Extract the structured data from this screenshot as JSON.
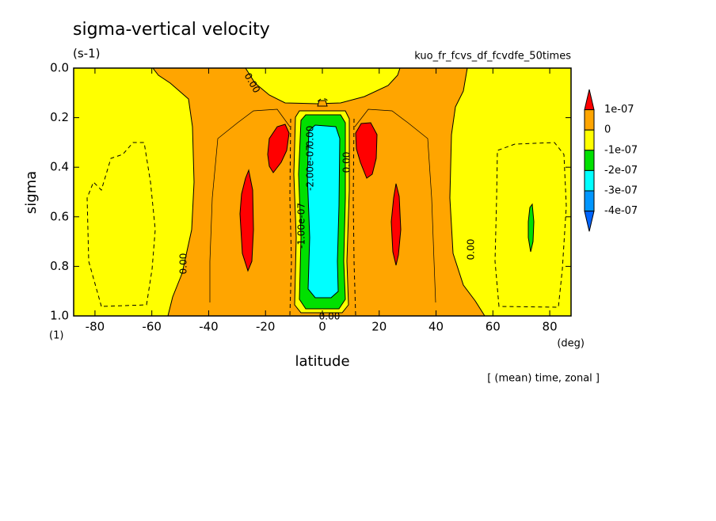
{
  "chart_data": {
    "type": "contour",
    "title": "sigma-vertical velocity",
    "units": "(s-1)",
    "subtitle": "kuo_fr_fcvs_df_fcvdfe_50times",
    "x_label": "latitude",
    "y_label": "sigma",
    "x_unit": "(deg)",
    "y_unit": "(1)",
    "footnote": "[ (mean) time, zonal ]",
    "xlim": [
      -87.5,
      87.5
    ],
    "ylim": [
      1.0,
      0.0
    ],
    "xticks": [
      -80,
      -60,
      -40,
      -20,
      0,
      20,
      40,
      60,
      80
    ],
    "yticks": [
      {
        "value": 0,
        "label": "0.0"
      },
      {
        "value": 0.2,
        "label": "0.2"
      },
      {
        "value": 0.4,
        "label": "0.4"
      },
      {
        "value": 0.6,
        "label": "0.6"
      },
      {
        "value": 0.8,
        "label": "0.8"
      },
      {
        "value": 1,
        "label": "1.0"
      }
    ],
    "colorbar": {
      "levels": [
        {
          "value": 1e-07,
          "label": "1e-07"
        },
        {
          "value": 0,
          "label": "0"
        },
        {
          "value": -1e-07,
          "label": "-1e-07"
        },
        {
          "value": -2e-07,
          "label": "-2e-07"
        },
        {
          "value": -3e-07,
          "label": "-3e-07"
        },
        {
          "value": -4e-07,
          "label": "-4e-07"
        }
      ],
      "colors": [
        "#ff0000",
        "#ffa500",
        "#ffff00",
        "#00e000",
        "#00ffff",
        "#0096ff",
        "#0064ff"
      ]
    },
    "contour_labels": [
      "0.00",
      "0.00",
      "0.00",
      "0.00",
      "-1.00e-07",
      "-2.00e-07",
      "0.00",
      "0.00"
    ]
  }
}
